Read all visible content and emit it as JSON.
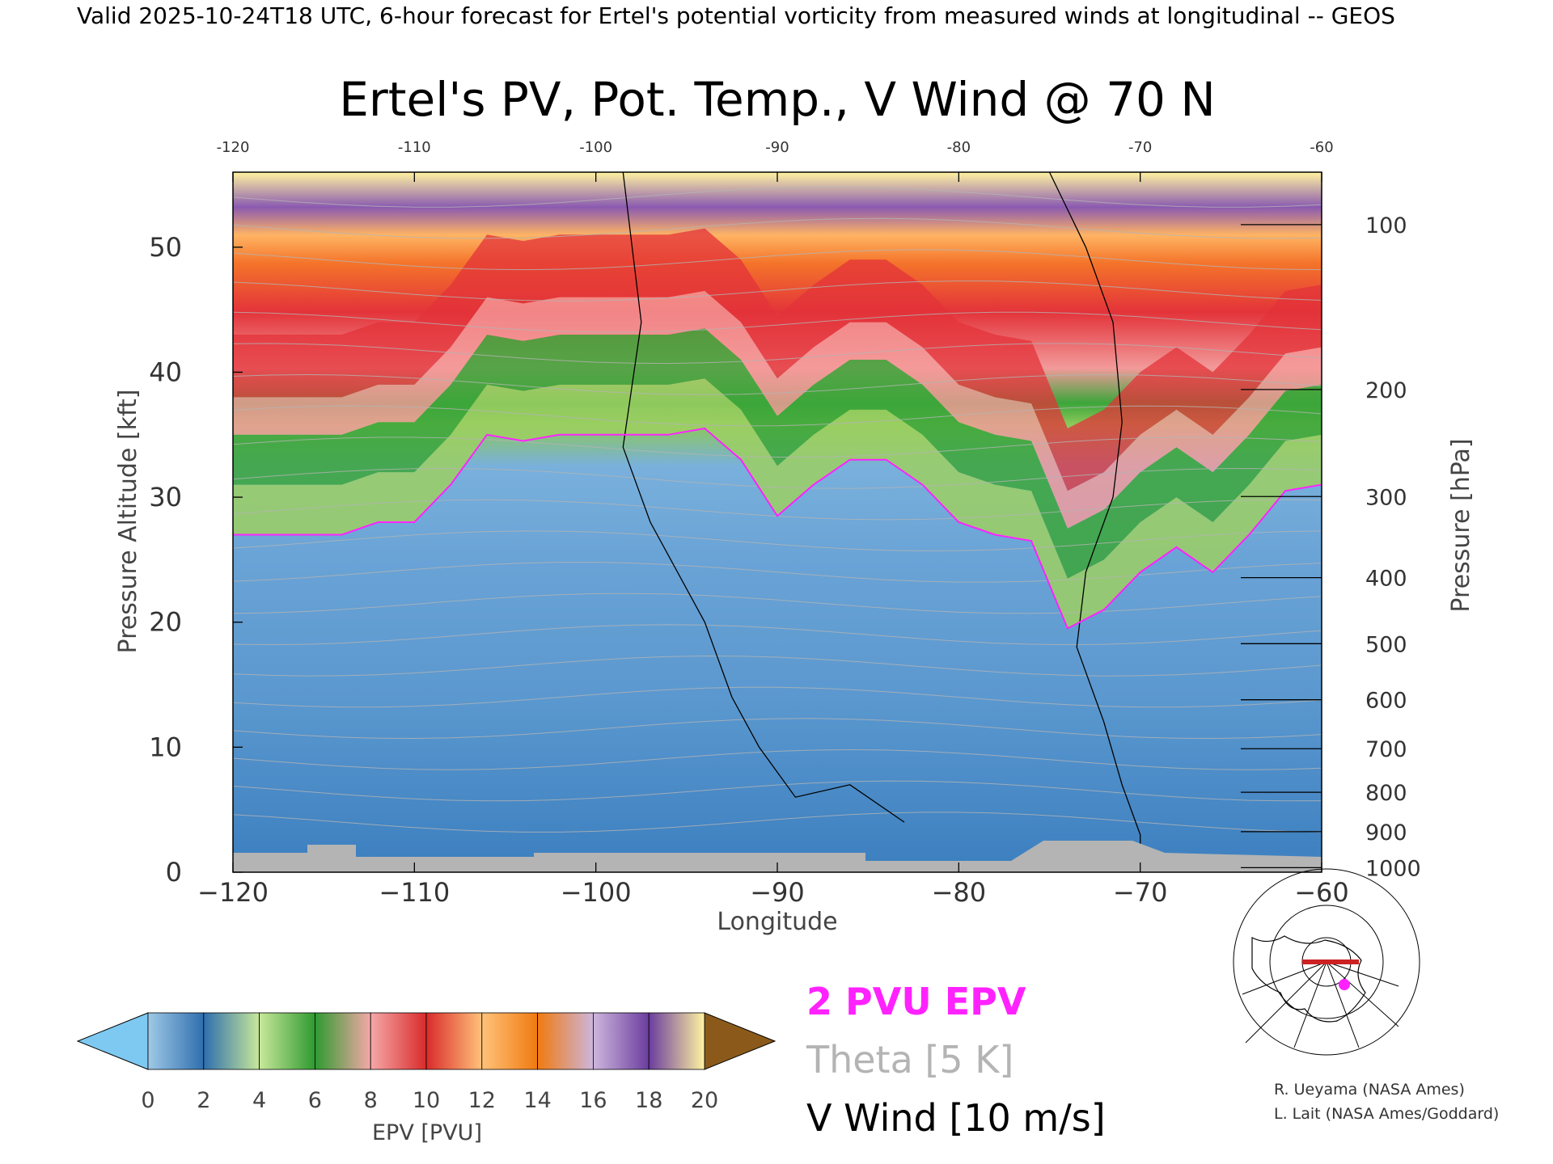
{
  "header": "Valid 2025-10-24T18 UTC, 6-hour forecast for Ertel's potential vorticity from measured winds at longitudinal -- GEOS",
  "title": "Ertel's PV, Pot. Temp., V Wind @ 70 N",
  "x_axis": {
    "label": "Longitude",
    "ticks": [
      "−120",
      "−110",
      "−100",
      "−90",
      "−80",
      "−70",
      "−60"
    ],
    "top_ticks": [
      "-120",
      "-110",
      "-100",
      "-90",
      "-80",
      "-70",
      "-60"
    ]
  },
  "y_axis_left": {
    "label": "Pressure Altitude [kft]",
    "ticks": [
      "0",
      "10",
      "20",
      "30",
      "40",
      "50"
    ]
  },
  "y_axis_right": {
    "label": "Pressure [hPa]",
    "ticks": [
      "100",
      "200",
      "300",
      "400",
      "500",
      "600",
      "700",
      "800",
      "900",
      "1000"
    ]
  },
  "colorbar": {
    "label": "EPV [PVU]",
    "ticks": [
      "0",
      "2",
      "4",
      "6",
      "8",
      "10",
      "12",
      "14",
      "16",
      "18",
      "20"
    ],
    "colors": {
      "under": "#7ec9f2",
      "over": "#8b5a1a",
      "stops": [
        "#9fc9e6",
        "#2f6fae",
        "#c8e89a",
        "#2f9a30",
        "#f5a8a8",
        "#d92b2b",
        "#ffc27a",
        "#f07a10",
        "#cdb6dd",
        "#6b3d9e",
        "#fff3a0",
        "#c8a66a"
      ]
    }
  },
  "legend": {
    "pv_label": "2 PVU EPV",
    "theta_label": "Theta [5 K]",
    "wind_label": "V Wind [10 m/s]",
    "pv_color": "#ff22ff",
    "theta_color": "#b4b4b4",
    "wind_color": "#000000"
  },
  "credits": [
    "R. Ueyama (NASA Ames)",
    "L. Lait (NASA Ames/Goddard)"
  ],
  "chart_data": {
    "type": "heatmap",
    "title": "Ertel's PV, Pot. Temp., V Wind @ 70 N",
    "xlabel": "Longitude",
    "ylabel": "Pressure Altitude [kft]",
    "y2label": "Pressure [hPa]",
    "xlim": [
      -120,
      -60
    ],
    "ylim": [
      0,
      56
    ],
    "x": [
      -120,
      -118,
      -116,
      -114,
      -112,
      -110,
      -108,
      -106,
      -104,
      -102,
      -100,
      -98,
      -96,
      -94,
      -92,
      -90,
      -88,
      -86,
      -84,
      -82,
      -80,
      -78,
      -76,
      -74,
      -72,
      -70,
      -68,
      -66,
      -64,
      -62,
      -60
    ],
    "tropopause_2pvu_kft": [
      27,
      27,
      27,
      27,
      28,
      28,
      31,
      35,
      34.5,
      35,
      35,
      35,
      35,
      35.5,
      33,
      28.5,
      31,
      33,
      33,
      31,
      28,
      27,
      26.5,
      19.5,
      21,
      24,
      26,
      24,
      27,
      30.5,
      31
    ],
    "colorbar_range": [
      0,
      20
    ],
    "colorbar_step": 2,
    "vwind_zero_contour": {
      "x": [
        -98.5,
        -98,
        -97.5,
        -98.5,
        -97,
        -94,
        -92.5,
        -91,
        -89,
        -86,
        -83
      ],
      "y": [
        56,
        50,
        44,
        34,
        28,
        20,
        14,
        10,
        6,
        7,
        4
      ]
    },
    "vwind_zero_contour_east": {
      "x": [
        -75,
        -73,
        -71.5,
        -71,
        -71.5,
        -73,
        -73.5,
        -72,
        -71,
        -70,
        -70
      ],
      "y": [
        56,
        50,
        44,
        36,
        30,
        24,
        18,
        12,
        7,
        3,
        0
      ]
    }
  }
}
